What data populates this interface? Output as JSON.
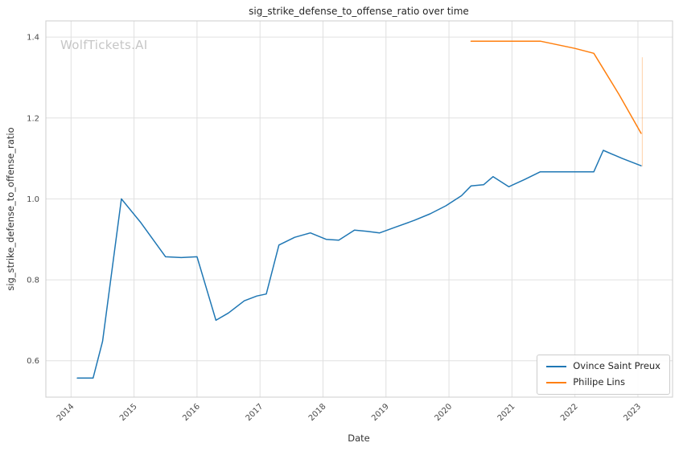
{
  "watermark": "WolfTickets.AI",
  "theme": {
    "grid_color": "#e0e0e0",
    "spine_color": "#cdcdcd",
    "tick_color": "#4a4a4a",
    "text_color": "#262626",
    "watermark_color": "#c6c6c6",
    "background": "#ffffff"
  },
  "chart_data": {
    "type": "line",
    "title": "sig_strike_defense_to_offense_ratio over time",
    "xlabel": "Date",
    "ylabel": "sig_strike_defense_to_offense_ratio",
    "xlim": [
      2013.6,
      2023.55
    ],
    "ylim": [
      0.51,
      1.44
    ],
    "x_ticks": [
      2014,
      2015,
      2016,
      2017,
      2018,
      2019,
      2020,
      2021,
      2022,
      2023
    ],
    "y_ticks": [
      0.6,
      0.8,
      1.0,
      1.2,
      1.4
    ],
    "grid": true,
    "legend_position": "lower right",
    "series": [
      {
        "name": "Ovince Saint Preux",
        "color": "#1f77b4",
        "x": [
          2014.1,
          2014.35,
          2014.5,
          2014.8,
          2015.1,
          2015.5,
          2015.75,
          2016.0,
          2016.3,
          2016.5,
          2016.75,
          2016.95,
          2017.1,
          2017.3,
          2017.55,
          2017.8,
          2018.05,
          2018.25,
          2018.5,
          2018.7,
          2018.9,
          2019.15,
          2019.45,
          2019.7,
          2019.95,
          2020.2,
          2020.35,
          2020.55,
          2020.7,
          2020.95,
          2021.2,
          2021.45,
          2021.8,
          2022.1,
          2022.3,
          2022.45,
          2022.75,
          2023.05
        ],
        "y": [
          0.557,
          0.557,
          0.648,
          1.0,
          0.943,
          0.857,
          0.855,
          0.857,
          0.7,
          0.718,
          0.748,
          0.76,
          0.765,
          0.886,
          0.905,
          0.916,
          0.9,
          0.898,
          0.923,
          0.92,
          0.916,
          0.93,
          0.947,
          0.963,
          0.983,
          1.008,
          1.032,
          1.035,
          1.055,
          1.03,
          1.048,
          1.067,
          1.067,
          1.067,
          1.067,
          1.12,
          1.1,
          1.082
        ]
      },
      {
        "name": "Philipe Lins",
        "color": "#ff7f0e",
        "x": [
          2020.35,
          2020.8,
          2021.15,
          2021.45,
          2022.0,
          2022.3,
          2022.7,
          2023.05
        ],
        "y": [
          1.39,
          1.39,
          1.39,
          1.39,
          1.372,
          1.36,
          1.258,
          1.162
        ]
      }
    ],
    "annotations": [
      {
        "type": "vertical-error-bar",
        "x": 2023.07,
        "y0": 1.08,
        "y1": 1.35,
        "color": "#ff7f0e",
        "opacity": 0.3
      }
    ]
  }
}
